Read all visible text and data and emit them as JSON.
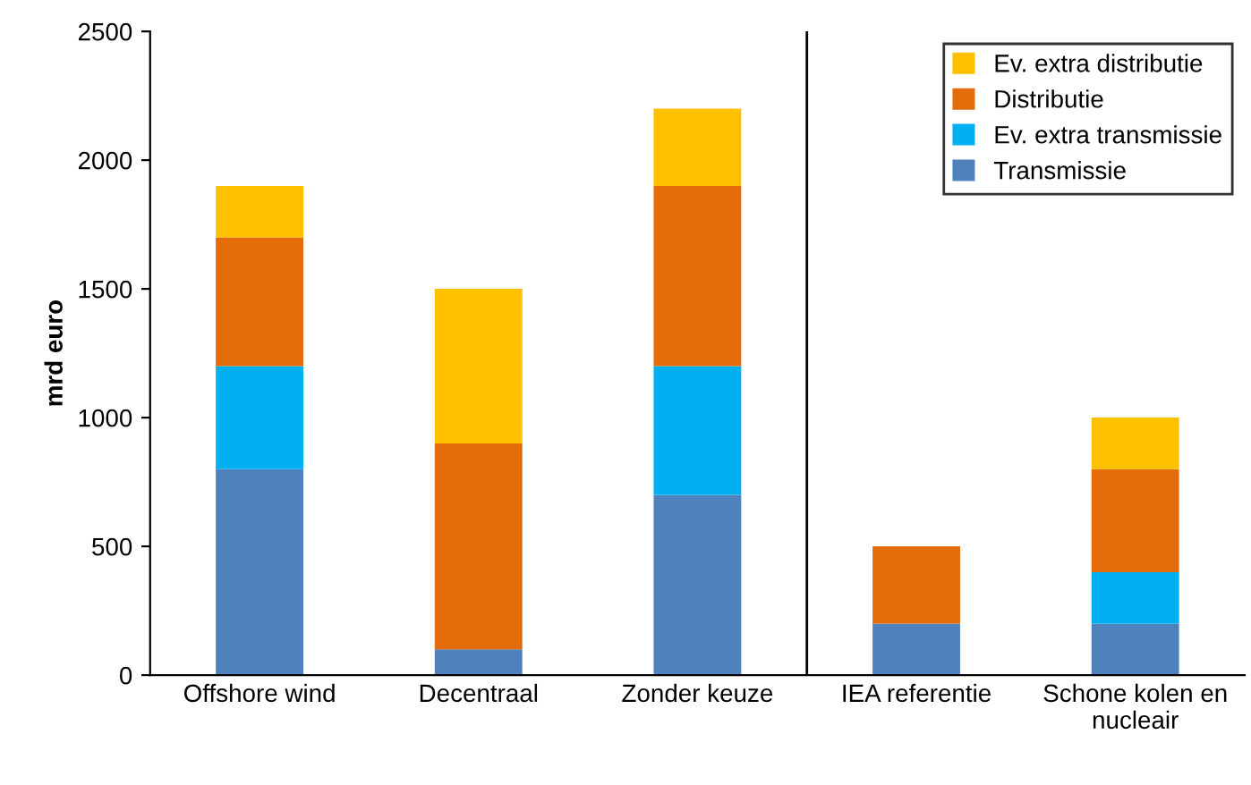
{
  "chart_data": {
    "type": "bar",
    "stacked": true,
    "ylabel": "mrd euro",
    "categories": [
      "Offshore wind",
      "Decentraal",
      "Zonder keuze",
      "IEA referentie",
      "Schone kolen en nucleair"
    ],
    "series": [
      {
        "name": "Transmissie",
        "color": "#4f81bd",
        "values": [
          800,
          100,
          700,
          200,
          200
        ]
      },
      {
        "name": "Ev. extra transmissie",
        "color": "#00b0f0",
        "values": [
          400,
          0,
          500,
          0,
          200
        ]
      },
      {
        "name": "Distributie",
        "color": "#e46c0a",
        "values": [
          500,
          800,
          700,
          300,
          400
        ]
      },
      {
        "name": "Ev. extra distributie",
        "color": "#ffc000",
        "values": [
          200,
          600,
          300,
          0,
          200
        ]
      }
    ],
    "ylim": [
      0,
      2500
    ],
    "yticks": [
      0,
      500,
      1000,
      1500,
      2000,
      2500
    ],
    "grid": false,
    "legend": "top right"
  }
}
